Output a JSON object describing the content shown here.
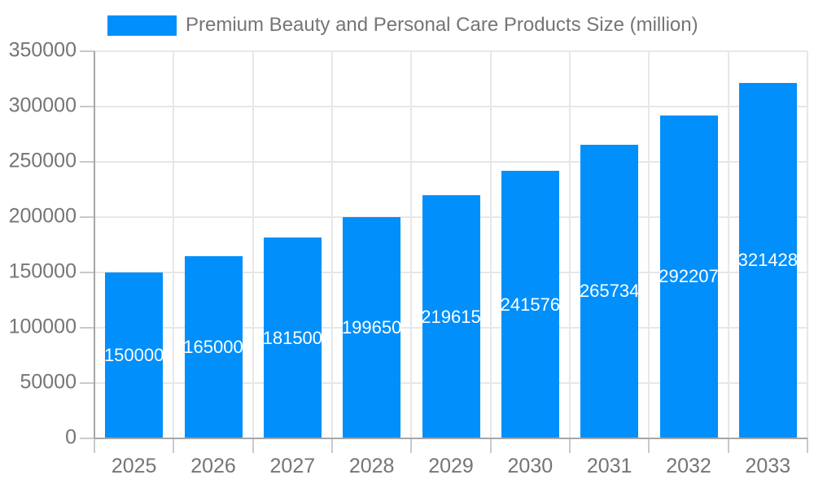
{
  "legend": {
    "label": "Premium Beauty and Personal Care Products Size (million)"
  },
  "colors": {
    "bar": "#008FFB",
    "bar_label": "#FFFFFF",
    "axis_text": "#757575",
    "axis_line": "#A6A6A6",
    "tick_line": "#C9C9C9",
    "grid_line": "#E7E7E7",
    "background": "#FFFFFF"
  },
  "chart_data": {
    "type": "bar",
    "title": "Premium Beauty and Personal Care Products Size (million)",
    "categories": [
      "2025",
      "2026",
      "2027",
      "2028",
      "2029",
      "2030",
      "2031",
      "2032",
      "2033"
    ],
    "series": [
      {
        "name": "Premium Beauty and Personal Care Products Size (million)",
        "values": [
          150000,
          165000,
          181500,
          199650,
          219615,
          241576,
          265734,
          292207,
          321428
        ]
      }
    ],
    "data_labels": [
      "150000",
      "165000",
      "181500",
      "199650",
      "219615",
      "241576",
      "265734",
      "292207",
      "321428"
    ],
    "xlabel": "",
    "ylabel": "",
    "ylim": [
      0,
      350000
    ],
    "ytick_step": 50000,
    "yticks": [
      0,
      50000,
      100000,
      150000,
      200000,
      250000,
      300000,
      350000
    ],
    "grid": true,
    "legend_position": "top",
    "bar_color": "#008FFB",
    "data_label_position": "center"
  }
}
